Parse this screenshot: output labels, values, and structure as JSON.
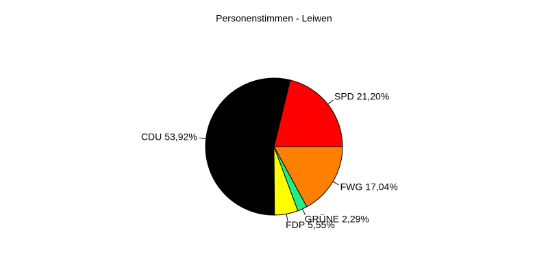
{
  "chart_data": {
    "type": "pie",
    "title": "Personenstimmen - Leiwen",
    "categories": [
      "SPD",
      "CDU",
      "FDP",
      "GRÜNE",
      "FWG"
    ],
    "values": [
      21.2,
      53.92,
      5.55,
      2.29,
      17.04
    ],
    "value_labels": [
      "21,20%",
      "53,92%",
      "5,55%",
      "2,29%",
      "17,04%"
    ],
    "colors": [
      "#ff0000",
      "#000000",
      "#ffff00",
      "#22ee88",
      "#ff8000"
    ]
  }
}
